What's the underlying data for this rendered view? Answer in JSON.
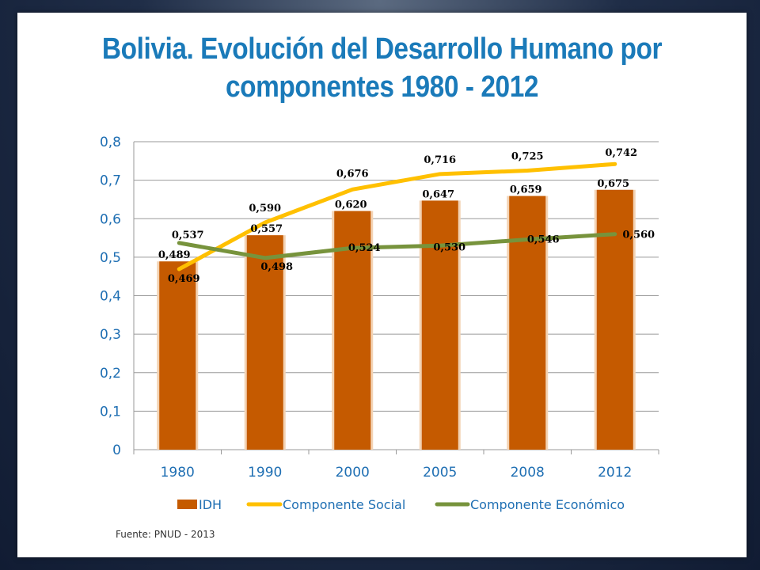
{
  "title_lines": [
    "Bolivia. Evolución del Desarrollo Humano por",
    "componentes 1980 - 2012"
  ],
  "source": "Fuente: PNUD - 2013",
  "colors": {
    "title": "#1a7ab9",
    "bar": "#c55a00",
    "social": "#ffc000",
    "economico": "#77933c",
    "axis_text": "#1f6fb3"
  },
  "chart_data": {
    "type": "bar",
    "categories": [
      "1980",
      "1990",
      "2000",
      "2005",
      "2008",
      "2012"
    ],
    "ylim": [
      0,
      0.8
    ],
    "yticks": [
      0,
      0.1,
      0.2,
      0.3,
      0.4,
      0.5,
      0.6,
      0.7,
      0.8
    ],
    "ytick_labels": [
      "0",
      "0,1",
      "0,2",
      "0,3",
      "0,4",
      "0,5",
      "0,6",
      "0,7",
      "0,8"
    ],
    "grid": true,
    "legend_position": "bottom",
    "series": [
      {
        "name": "IDH",
        "kind": "bar",
        "values": [
          0.489,
          0.557,
          0.62,
          0.647,
          0.659,
          0.675
        ],
        "labels": [
          "0,489",
          "0,557",
          "0,620",
          "0,647",
          "0,659",
          "0,675"
        ]
      },
      {
        "name": "Componente Social",
        "kind": "line",
        "values": [
          0.469,
          0.59,
          0.676,
          0.716,
          0.725,
          0.742
        ],
        "labels": [
          "0,469",
          "0,590",
          "0,676",
          "0,716",
          "0,725",
          "0,742"
        ]
      },
      {
        "name": "Componente Económico",
        "kind": "line",
        "values": [
          0.537,
          0.498,
          0.524,
          0.53,
          0.546,
          0.56
        ],
        "labels": [
          "0,537",
          "0,498",
          "0,524",
          "0,530",
          "0,546",
          "0,560"
        ]
      }
    ]
  }
}
